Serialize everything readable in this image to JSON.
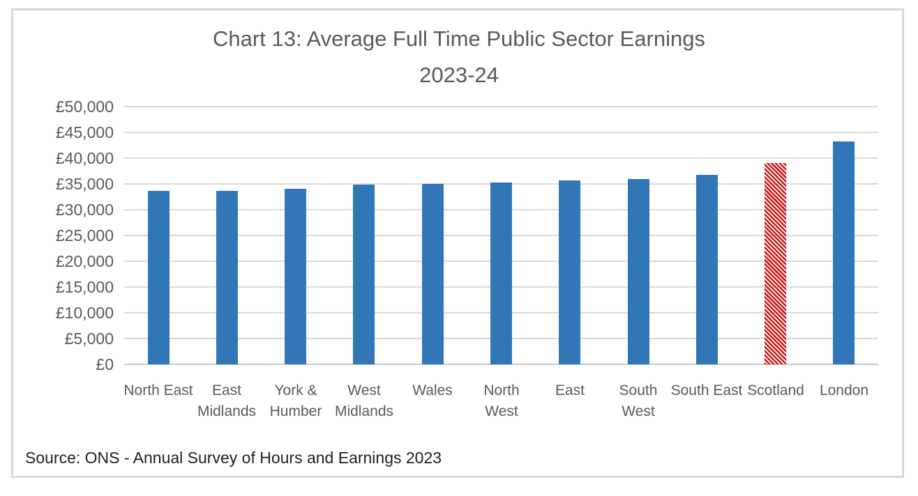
{
  "title": {
    "line1": "Chart 13: Average Full Time Public Sector Earnings",
    "line2": "2023-24"
  },
  "source": "Source: ONS - Annual Survey of Hours and Earnings 2023",
  "colors": {
    "bar": "#3176b6",
    "highlight": "#cc1616",
    "gridline": "#d9d9d9",
    "axis_text": "#595959",
    "title_text": "#595959",
    "source_text": "#1f1f1f",
    "frame_border": "#d9d9d9"
  },
  "chart_data": {
    "type": "bar",
    "title": "Chart 13: Average Full Time Public Sector Earnings 2023-24",
    "categories": [
      "North East",
      "East Midlands",
      "York & Humber",
      "West Midlands",
      "Wales",
      "North West",
      "East",
      "South West",
      "South East",
      "Scotland",
      "London"
    ],
    "values": [
      33600,
      33700,
      34000,
      34800,
      35000,
      35300,
      35700,
      35900,
      36700,
      39000,
      43300
    ],
    "highlighted_category": "Scotland",
    "highlight_style": "red diagonal hatch pattern",
    "xlabel": "",
    "ylabel": "",
    "ylim": [
      0,
      50000
    ],
    "ytick_step": 5000,
    "yticklabels": [
      "£50,000",
      "£45,000",
      "£40,000",
      "£35,000",
      "£30,000",
      "£25,000",
      "£20,000",
      "£15,000",
      "£10,000",
      "£5,000",
      "£0"
    ],
    "grid": true,
    "legend": false,
    "currency": "GBP"
  }
}
